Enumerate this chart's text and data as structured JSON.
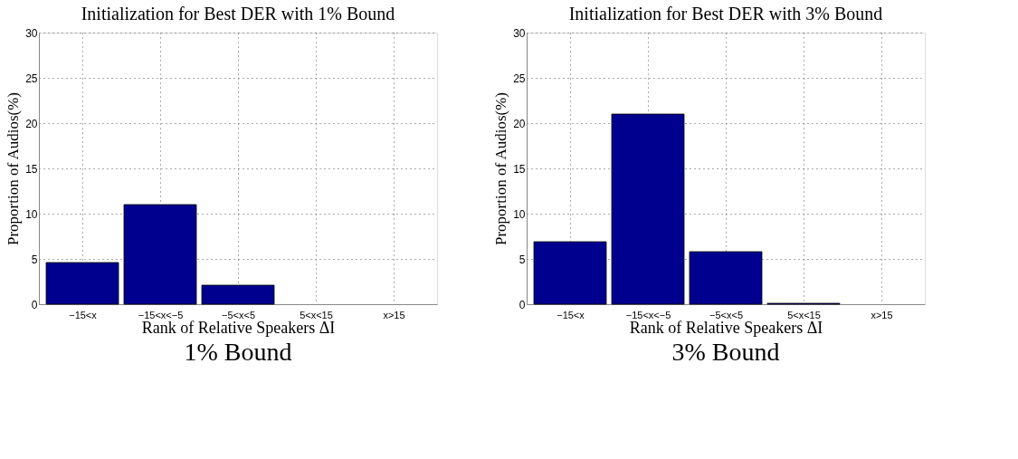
{
  "chart_data": [
    {
      "type": "bar",
      "title": "Initialization for Best DER with 1% Bound",
      "xlabel": "Rank of Relative Speakers ΔI",
      "ylabel": "Proportion of Audios(%)",
      "categories": [
        "−15<x",
        "−15<x<−5",
        "−5<x<5",
        "5<x<15",
        "x>15"
      ],
      "values": [
        4.6,
        11,
        2.1,
        0,
        0
      ],
      "color": "#00008f",
      "ylim": [
        0,
        30
      ],
      "yticks": [
        0,
        5,
        10,
        15,
        20,
        25,
        30
      ],
      "grid": true,
      "annotations": [
        "1% Bound"
      ]
    },
    {
      "type": "bar",
      "title": "Initialization for Best DER with 3% Bound",
      "xlabel": "Rank of Relative Speakers ΔI",
      "ylabel": "Proportion of Audios(%)",
      "categories": [
        "−15<x",
        "−15<x<−5",
        "−5<x<5",
        "5<x<15",
        "x>15"
      ],
      "values": [
        6.9,
        21,
        5.8,
        0.1,
        0
      ],
      "color": "#00008f",
      "ylim": [
        0,
        30
      ],
      "yticks": [
        0,
        5,
        10,
        15,
        20,
        25,
        30
      ],
      "grid": true,
      "annotations": [
        "3% Bound"
      ]
    }
  ]
}
